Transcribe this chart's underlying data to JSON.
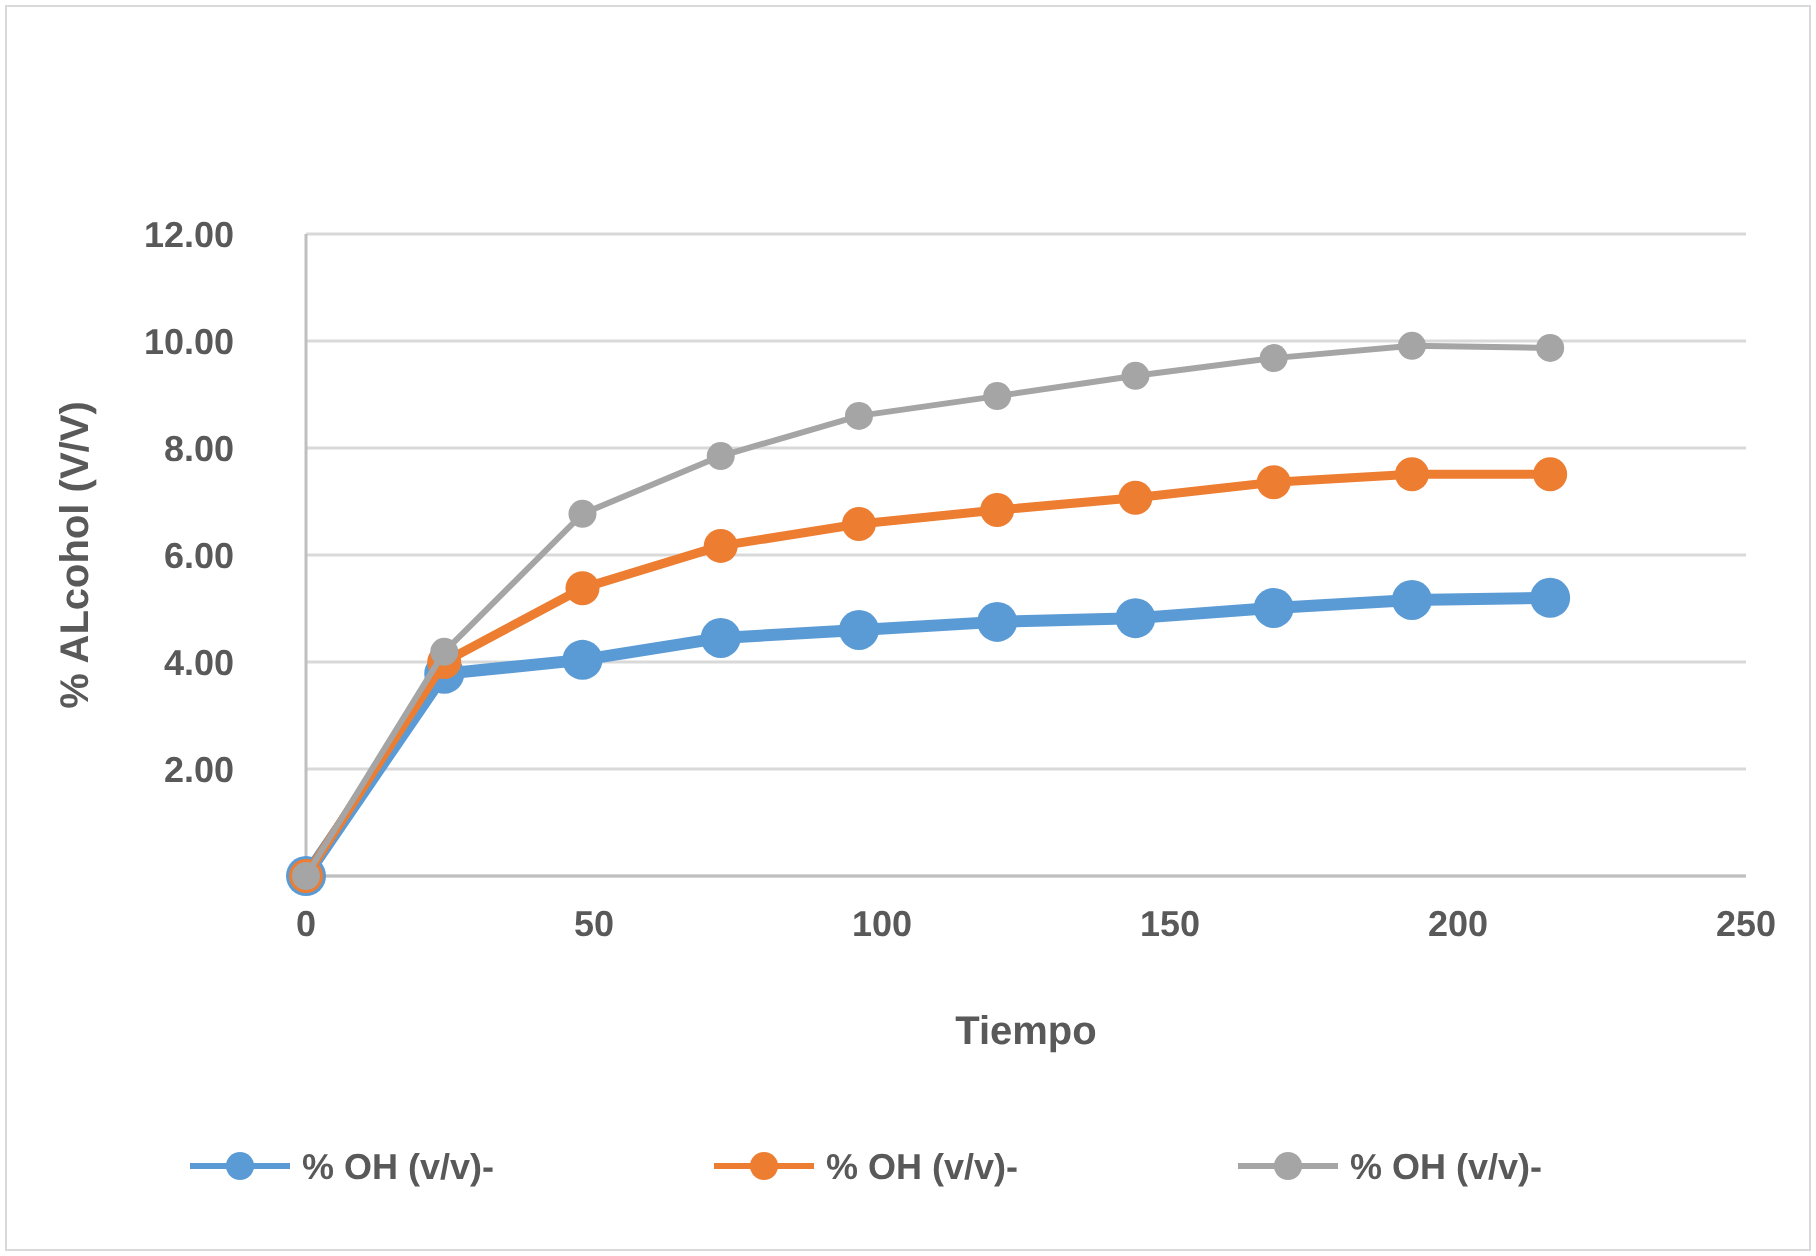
{
  "chart_data": {
    "type": "line",
    "xlabel": "Tiempo",
    "ylabel": "% ALcohol (V/V)",
    "x": [
      0,
      24,
      48,
      72,
      96,
      120,
      144,
      168,
      192,
      216
    ],
    "series": [
      {
        "name": "% OH (v/v)-",
        "color": "#5b9bd5",
        "values": [
          0,
          3.78,
          4.04,
          4.45,
          4.6,
          4.75,
          4.82,
          5.01,
          5.16,
          5.2
        ]
      },
      {
        "name": "% OH (v/v)-",
        "color": "#ed7d31",
        "values": [
          0,
          4.0,
          5.38,
          6.17,
          6.58,
          6.84,
          7.07,
          7.36,
          7.51,
          7.51
        ]
      },
      {
        "name": "% OH (v/v)-",
        "color": "#a5a5a5",
        "values": [
          0,
          4.19,
          6.77,
          7.85,
          8.6,
          8.97,
          9.35,
          9.68,
          9.91,
          9.87
        ]
      }
    ],
    "xlim": [
      0,
      250
    ],
    "xticks": [
      0,
      50,
      100,
      150,
      200,
      250
    ],
    "ylim": [
      0,
      12
    ],
    "yticks": [
      {
        "value": 0,
        "label": null
      },
      {
        "value": 2,
        "label": "2.00"
      },
      {
        "value": 4,
        "label": "4.00"
      },
      {
        "value": 6,
        "label": "6.00"
      },
      {
        "value": 8,
        "label": "8.00"
      },
      {
        "value": 10,
        "label": "10.00"
      },
      {
        "value": 12,
        "label": "12.00"
      }
    ],
    "grid": "y",
    "legend": "bottom",
    "marker": "circle",
    "line_style": "solid"
  }
}
